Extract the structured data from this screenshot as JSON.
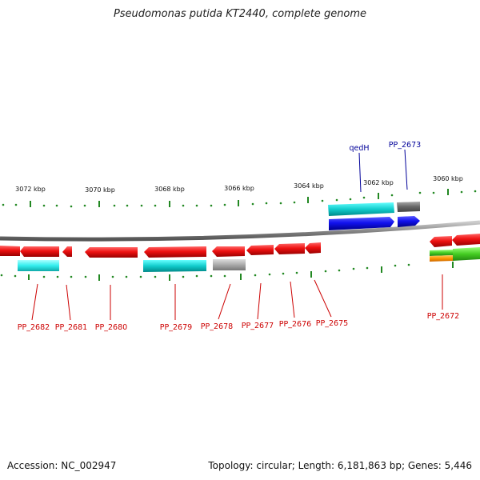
{
  "title": "Pseudomonas putida KT2440, complete genome",
  "footer": {
    "accession": "Accession: NC_002947",
    "summary": "Topology: circular; Length: 6,181,863 bp; Genes: 5,446"
  },
  "scale_labels": [
    "3072 kbp",
    "3070 kbp",
    "3068 kbp",
    "3066 kbp",
    "3064 kbp",
    "3062 kbp",
    "3060 kbp"
  ],
  "gene_labels_top": [
    "qedH",
    "PP_2673"
  ],
  "gene_labels_bottom": [
    "PP_2682",
    "PP_2681",
    "PP_2680",
    "PP_2679",
    "PP_2678",
    "PP_2677",
    "PP_2676",
    "PP_2675",
    "PP_2672"
  ],
  "colors": {
    "reverse_gene": "#ee1111",
    "forward_gene": "#1111ee",
    "cyan_feature": "#11bbbb",
    "gray_feature": "#999999",
    "backbone": "#888888",
    "tick": "#228822",
    "label_red": "#cc0000",
    "label_blue": "#000099"
  }
}
